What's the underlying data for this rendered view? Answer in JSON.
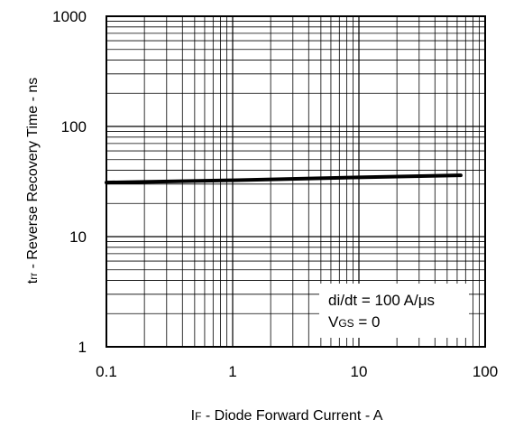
{
  "chart_data": {
    "type": "line",
    "x_scale": "log",
    "y_scale": "log",
    "xlim": [
      0.1,
      100
    ],
    "ylim": [
      1,
      1000
    ],
    "grid": true,
    "x_ticks": [
      "0.1",
      "1",
      "10",
      "100"
    ],
    "y_ticks": [
      "1",
      "10",
      "100",
      "1000"
    ],
    "xlabel": {
      "main": "I",
      "sub": "F",
      "rest": " - Diode Forward Current - A"
    },
    "ylabel": {
      "main": "t",
      "sub": "rr",
      "rest": " - Reverse Recovery Time - ns"
    },
    "series": [
      {
        "color": "#000000",
        "points": [
          [
            0.1,
            31
          ],
          [
            1,
            32.5
          ],
          [
            10,
            34.5
          ],
          [
            64,
            36
          ]
        ]
      }
    ],
    "annotations": {
      "line1": "di/dt = 100 A/μs",
      "line2_main": "V",
      "line2_sub": "GS",
      "line2_rest": " = 0"
    }
  }
}
